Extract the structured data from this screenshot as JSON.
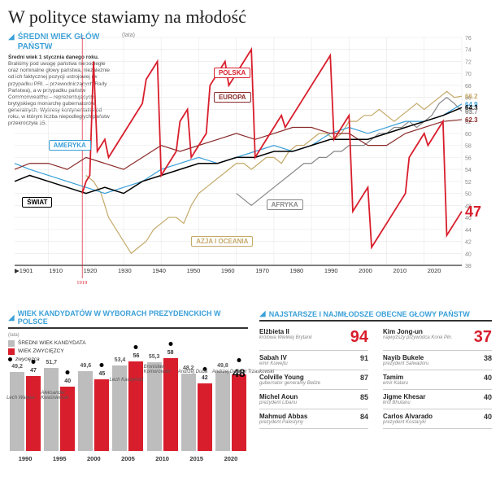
{
  "title": "W polityce stawiamy na młodość",
  "subhead": "ŚREDNI WIEK GŁÓW PAŃSTW",
  "desc_bold": "Średni wiek 1 stycznia danego roku.",
  "desc": " Braliśmy pod uwagę państwa niepodległe oraz nominalne głowy państwa, niezależnie od ich faktycznej pozycji ustrojowej (w przypadku PRL – przewodniczących Rady Państwa), a w przypadku państw Commonwealthu – reprezentujących brytyjskiego monarchę gubernatorów generalnych. Wykresy kontynentalne od roku, w którym liczba niepodległych państw przekroczyła 15.",
  "main_chart": {
    "y_unit": "(lata)",
    "ylim": [
      38,
      76
    ],
    "ytick_step": 2,
    "xlim": [
      1901,
      2020
    ],
    "marker_year": 1919,
    "grid_color": "#e8e8e8",
    "axis_color": "#333",
    "bg": "#ffffff",
    "series": {
      "polska": {
        "color": "#d81e2c",
        "label": "POLSKA",
        "label_pos": [
          1954,
          70
        ],
        "end_val": 47,
        "end_big": true,
        "data": [
          [
            1919,
            50
          ],
          [
            1920,
            52
          ],
          [
            1921,
            53
          ],
          [
            1922,
            72
          ],
          [
            1923,
            57
          ],
          [
            1924,
            58
          ],
          [
            1925,
            59
          ],
          [
            1926,
            56
          ],
          [
            1927,
            57
          ],
          [
            1928,
            58
          ],
          [
            1929,
            59
          ],
          [
            1930,
            60
          ],
          [
            1931,
            61
          ],
          [
            1932,
            62
          ],
          [
            1933,
            63
          ],
          [
            1934,
            64
          ],
          [
            1935,
            65
          ],
          [
            1936,
            69
          ],
          [
            1937,
            70
          ],
          [
            1938,
            71
          ],
          [
            1939,
            72
          ],
          [
            1940,
            53
          ],
          [
            1941,
            54
          ],
          [
            1942,
            55
          ],
          [
            1943,
            56
          ],
          [
            1944,
            57
          ],
          [
            1945,
            62
          ],
          [
            1946,
            63
          ],
          [
            1947,
            64
          ],
          [
            1948,
            56
          ],
          [
            1949,
            57
          ],
          [
            1950,
            58
          ],
          [
            1951,
            59
          ],
          [
            1952,
            60
          ],
          [
            1953,
            68
          ],
          [
            1954,
            69
          ],
          [
            1955,
            70
          ],
          [
            1956,
            71
          ],
          [
            1957,
            72
          ],
          [
            1958,
            68
          ],
          [
            1959,
            69
          ],
          [
            1960,
            70
          ],
          [
            1961,
            71
          ],
          [
            1962,
            72
          ],
          [
            1963,
            73
          ],
          [
            1964,
            74
          ],
          [
            1965,
            56
          ],
          [
            1966,
            57
          ],
          [
            1967,
            58
          ],
          [
            1968,
            59
          ],
          [
            1969,
            60
          ],
          [
            1970,
            61
          ],
          [
            1971,
            62
          ],
          [
            1972,
            63
          ],
          [
            1973,
            61
          ],
          [
            1974,
            62
          ],
          [
            1975,
            63
          ],
          [
            1976,
            64
          ],
          [
            1977,
            65
          ],
          [
            1978,
            66
          ],
          [
            1979,
            67
          ],
          [
            1980,
            68
          ],
          [
            1981,
            69
          ],
          [
            1982,
            70
          ],
          [
            1983,
            71
          ],
          [
            1984,
            72
          ],
          [
            1985,
            73
          ],
          [
            1986,
            59
          ],
          [
            1987,
            60
          ],
          [
            1988,
            61
          ],
          [
            1989,
            62
          ],
          [
            1990,
            63
          ],
          [
            1991,
            47
          ],
          [
            1992,
            48
          ],
          [
            1993,
            49
          ],
          [
            1994,
            50
          ],
          [
            1995,
            51
          ],
          [
            1996,
            41
          ],
          [
            1997,
            42
          ],
          [
            1998,
            43
          ],
          [
            1999,
            44
          ],
          [
            2000,
            45
          ],
          [
            2001,
            46
          ],
          [
            2002,
            47
          ],
          [
            2003,
            48
          ],
          [
            2004,
            49
          ],
          [
            2005,
            50
          ],
          [
            2006,
            56
          ],
          [
            2007,
            57
          ],
          [
            2008,
            58
          ],
          [
            2009,
            59
          ],
          [
            2010,
            60
          ],
          [
            2011,
            58
          ],
          [
            2012,
            59
          ],
          [
            2013,
            60
          ],
          [
            2014,
            61
          ],
          [
            2015,
            62
          ],
          [
            2016,
            43
          ],
          [
            2017,
            44
          ],
          [
            2018,
            45
          ],
          [
            2019,
            46
          ],
          [
            2020,
            47
          ]
        ]
      },
      "europa": {
        "color": "#8a2a2a",
        "label": "EUROPA",
        "label_pos": [
          1954,
          66
        ],
        "end_val": 62.3,
        "data": [
          [
            1901,
            54
          ],
          [
            1905,
            55
          ],
          [
            1910,
            55
          ],
          [
            1915,
            54
          ],
          [
            1920,
            56
          ],
          [
            1925,
            55
          ],
          [
            1930,
            54
          ],
          [
            1935,
            56
          ],
          [
            1940,
            58
          ],
          [
            1945,
            57
          ],
          [
            1950,
            58
          ],
          [
            1955,
            59
          ],
          [
            1960,
            60
          ],
          [
            1965,
            59
          ],
          [
            1970,
            60
          ],
          [
            1975,
            61
          ],
          [
            1980,
            61
          ],
          [
            1985,
            60
          ],
          [
            1990,
            60
          ],
          [
            1995,
            58
          ],
          [
            2000,
            58
          ],
          [
            2005,
            60
          ],
          [
            2010,
            61
          ],
          [
            2015,
            62
          ],
          [
            2020,
            62.3
          ]
        ]
      },
      "ameryka": {
        "color": "#3aa0d8",
        "label": "AMERYKA",
        "label_pos": [
          1910,
          58
        ],
        "end_val": 64.9,
        "data": [
          [
            1901,
            55
          ],
          [
            1905,
            54
          ],
          [
            1910,
            53
          ],
          [
            1915,
            52
          ],
          [
            1920,
            51
          ],
          [
            1925,
            50
          ],
          [
            1930,
            51
          ],
          [
            1935,
            52
          ],
          [
            1940,
            54
          ],
          [
            1945,
            55
          ],
          [
            1950,
            56
          ],
          [
            1955,
            55
          ],
          [
            1960,
            56
          ],
          [
            1965,
            57
          ],
          [
            1970,
            58
          ],
          [
            1975,
            57
          ],
          [
            1980,
            58
          ],
          [
            1985,
            60
          ],
          [
            1990,
            61
          ],
          [
            1995,
            60
          ],
          [
            2000,
            61
          ],
          [
            2005,
            62
          ],
          [
            2010,
            62
          ],
          [
            2015,
            63
          ],
          [
            2020,
            64.9
          ]
        ]
      },
      "swiat": {
        "color": "#000000",
        "label": "ŚWIAT",
        "label_pos": [
          1903,
          48.5
        ],
        "end_val": 64.3,
        "data": [
          [
            1901,
            52
          ],
          [
            1905,
            53
          ],
          [
            1910,
            52
          ],
          [
            1915,
            51
          ],
          [
            1920,
            50
          ],
          [
            1925,
            51
          ],
          [
            1930,
            50
          ],
          [
            1935,
            52
          ],
          [
            1940,
            53
          ],
          [
            1945,
            54
          ],
          [
            1950,
            55
          ],
          [
            1955,
            55
          ],
          [
            1960,
            56
          ],
          [
            1965,
            56
          ],
          [
            1970,
            57
          ],
          [
            1975,
            57
          ],
          [
            1980,
            58
          ],
          [
            1985,
            59
          ],
          [
            1990,
            59
          ],
          [
            1995,
            59
          ],
          [
            2000,
            60
          ],
          [
            2005,
            61
          ],
          [
            2010,
            62
          ],
          [
            2015,
            63
          ],
          [
            2020,
            64.3
          ]
        ]
      },
      "afryka": {
        "color": "#888888",
        "label": "AFRYKA",
        "label_pos": [
          1968,
          48
        ],
        "end_val": 63.7,
        "data": [
          [
            1960,
            50
          ],
          [
            1962,
            49
          ],
          [
            1964,
            48
          ],
          [
            1966,
            49
          ],
          [
            1968,
            50
          ],
          [
            1970,
            51
          ],
          [
            1972,
            52
          ],
          [
            1974,
            53
          ],
          [
            1976,
            54
          ],
          [
            1978,
            55
          ],
          [
            1980,
            55
          ],
          [
            1982,
            56
          ],
          [
            1984,
            56
          ],
          [
            1986,
            57
          ],
          [
            1988,
            57
          ],
          [
            1990,
            58
          ],
          [
            1992,
            58
          ],
          [
            1994,
            58
          ],
          [
            1996,
            59
          ],
          [
            1998,
            60
          ],
          [
            2000,
            60
          ],
          [
            2002,
            61
          ],
          [
            2004,
            61
          ],
          [
            2006,
            62
          ],
          [
            2008,
            61
          ],
          [
            2010,
            62
          ],
          [
            2012,
            63
          ],
          [
            2014,
            65
          ],
          [
            2016,
            66
          ],
          [
            2018,
            65
          ],
          [
            2020,
            63.7
          ]
        ]
      },
      "azja": {
        "color": "#c4a968",
        "label": "AZJA I OCEANIA",
        "label_pos": [
          1948,
          42
        ],
        "end_val": 66.2,
        "data": [
          [
            1920,
            53
          ],
          [
            1922,
            52
          ],
          [
            1924,
            50
          ],
          [
            1926,
            46
          ],
          [
            1928,
            44
          ],
          [
            1930,
            42
          ],
          [
            1932,
            40
          ],
          [
            1934,
            41
          ],
          [
            1936,
            42
          ],
          [
            1938,
            44
          ],
          [
            1940,
            45
          ],
          [
            1942,
            46
          ],
          [
            1944,
            46
          ],
          [
            1946,
            45
          ],
          [
            1948,
            48
          ],
          [
            1950,
            50
          ],
          [
            1952,
            51
          ],
          [
            1954,
            52
          ],
          [
            1956,
            53
          ],
          [
            1958,
            54
          ],
          [
            1960,
            55
          ],
          [
            1962,
            55
          ],
          [
            1964,
            54
          ],
          [
            1966,
            55
          ],
          [
            1968,
            56
          ],
          [
            1970,
            56
          ],
          [
            1972,
            55
          ],
          [
            1974,
            57
          ],
          [
            1976,
            58
          ],
          [
            1978,
            58
          ],
          [
            1980,
            59
          ],
          [
            1982,
            60
          ],
          [
            1984,
            60
          ],
          [
            1986,
            59
          ],
          [
            1988,
            60
          ],
          [
            1990,
            62
          ],
          [
            1992,
            62
          ],
          [
            1994,
            63
          ],
          [
            1996,
            63
          ],
          [
            1998,
            64
          ],
          [
            2000,
            63
          ],
          [
            2002,
            62
          ],
          [
            2004,
            63
          ],
          [
            2006,
            64
          ],
          [
            2008,
            65
          ],
          [
            2010,
            64
          ],
          [
            2012,
            65
          ],
          [
            2014,
            66
          ],
          [
            2016,
            67
          ],
          [
            2018,
            66
          ],
          [
            2020,
            66.2
          ]
        ]
      }
    }
  },
  "bars_panel": {
    "title": "WIEK KANDYDATÓW W WYBORACH PREZYDENCKICH W POLSCE",
    "unit": "(lata)",
    "legend": {
      "avg": "ŚREDNI WIEK KANDYDATA",
      "win": "WIEK ZWYCIĘZCY",
      "dot": "zwycięzca"
    },
    "avg_color": "#bdbdbd",
    "win_color": "#d81e2c",
    "ymax": 60,
    "years": [
      "1990",
      "1995",
      "2000",
      "2005",
      "2010",
      "2015",
      "2020"
    ],
    "data": [
      {
        "avg": 49.2,
        "win": 47,
        "winner": "Lech Wałęsa",
        "name_y": 62
      },
      {
        "avg": 51.7,
        "win": 40,
        "winner": "Aleksander Kwaśniewski",
        "name_y": 62
      },
      {
        "avg": 49.6,
        "win": 45,
        "winner": "",
        "name_y": 0
      },
      {
        "avg": 53.4,
        "win": 56,
        "winner": "Lech Kaczyński",
        "name_y": 84
      },
      {
        "avg": 55.3,
        "win": 58,
        "winner": "Bronisław Komorowski",
        "name_y": 94
      },
      {
        "avg": 48.2,
        "win": 42,
        "winner": "Andrzej Duda",
        "name_y": 94
      },
      {
        "avg": 49.8,
        "win": 48,
        "winner": "Andrzej Duda",
        "name_y": 94,
        "big": true,
        "alt": "Rafał Trzaskowski"
      }
    ]
  },
  "leaders_panel": {
    "title": "NAJSTARSZE I NAJMŁODSZE OBECNE GŁOWY PAŃSTW",
    "oldest": [
      {
        "name": "Elżbieta II",
        "sub": "królowa Wielkiej Brytanii",
        "age": 94,
        "big": true
      },
      {
        "name": "Sabah IV",
        "sub": "emir Kuwejtu",
        "age": 91
      },
      {
        "name": "Colville Young",
        "sub": "gubernator generalny Belize",
        "age": 87
      },
      {
        "name": "Michel Aoun",
        "sub": "prezydent Libanu",
        "age": 85
      },
      {
        "name": "Mahmud Abbas",
        "sub": "prezydent Palestyny",
        "age": 84
      }
    ],
    "youngest": [
      {
        "name": "Kim Jong-un",
        "sub": "najwyższy przywódca Korei Płn.",
        "age": 37,
        "big": true
      },
      {
        "name": "Nayib Bukele",
        "sub": "prezydent Salwadoru",
        "age": 38
      },
      {
        "name": "Tamim",
        "sub": "emir Kataru",
        "age": 40
      },
      {
        "name": "Jigme Khesar",
        "sub": "król Bhutanu",
        "age": 40
      },
      {
        "name": "Carlos Alvarado",
        "sub": "prezydent Kostaryki",
        "age": 40
      }
    ]
  }
}
